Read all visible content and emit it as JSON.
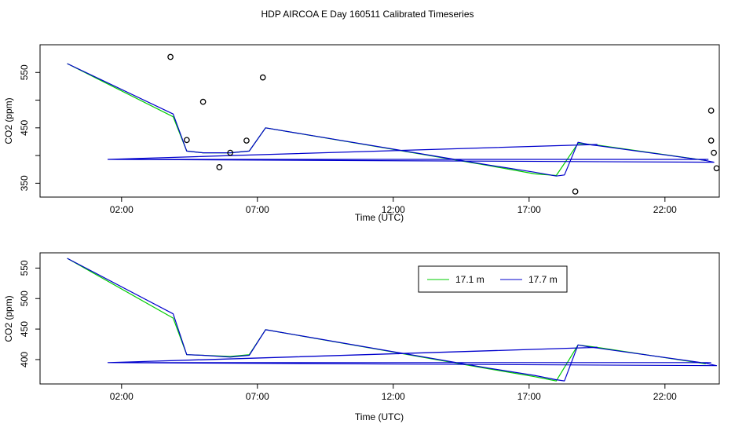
{
  "figure": {
    "title": "HDP AIRCOA E  Day 160511  Calibrated Timeseries"
  },
  "chart_data": [
    {
      "type": "line",
      "xlabel": "Time (UTC)",
      "ylabel": "CO2 (ppm)",
      "xlim": [
        -1,
        24
      ],
      "ylim": [
        325,
        600
      ],
      "xticks": [
        2,
        7,
        12,
        17,
        22
      ],
      "xtick_labels": [
        "02:00",
        "07:00",
        "12:00",
        "17:00",
        "22:00"
      ],
      "yticks": [
        350,
        400,
        450,
        500,
        550
      ],
      "ytick_labels": [
        "350",
        "",
        "450",
        "",
        "550"
      ],
      "grid": false,
      "legend": null,
      "series": [
        {
          "color": "#00cc00",
          "x": [
            0.0,
            3.9,
            4.4,
            5.0,
            6.0,
            6.7,
            7.3,
            15.5,
            17.2,
            18.0,
            18.8,
            19.5,
            23.5
          ],
          "y": [
            566,
            470,
            408,
            405,
            405,
            408,
            450,
            382,
            367,
            364,
            422,
            419,
            391
          ]
        },
        {
          "color": "#0000cc",
          "x": [
            0.0,
            3.9,
            4.4,
            5.0,
            6.0,
            6.7,
            7.3,
            15.5,
            17.2,
            18.0,
            18.3,
            18.8,
            19.3,
            19.5,
            23.5,
            23.8,
            1.5,
            6.0,
            19.5,
            1.5,
            23.6
          ],
          "y": [
            566,
            475,
            408,
            405,
            405,
            408,
            450,
            383,
            370,
            363,
            365,
            424,
            419,
            418,
            391,
            388,
            393,
            400,
            420,
            393,
            393
          ]
        }
      ],
      "markers": {
        "x": [
          3.8,
          4.4,
          5.0,
          5.6,
          6.0,
          6.6,
          7.2,
          18.7,
          23.7,
          23.7,
          23.8,
          23.9
        ],
        "y": [
          578,
          428,
          497,
          379,
          405,
          427,
          541,
          335,
          481,
          427,
          405,
          377
        ]
      }
    },
    {
      "type": "line",
      "xlabel": "Time (UTC)",
      "ylabel": "CO2 (ppm)",
      "xlim": [
        -1,
        24
      ],
      "ylim": [
        360,
        575
      ],
      "xticks": [
        2,
        7,
        12,
        17,
        22
      ],
      "xtick_labels": [
        "02:00",
        "07:00",
        "12:00",
        "17:00",
        "22:00"
      ],
      "yticks": [
        400,
        450,
        500,
        550
      ],
      "ytick_labels": [
        "400",
        "450",
        "500",
        "550"
      ],
      "grid": false,
      "legend": {
        "placement": "top-right",
        "entries": [
          {
            "label": "17.1 m",
            "color": "#00cc00"
          },
          {
            "label": "17.7 m",
            "color": "#0000cc"
          }
        ]
      },
      "series": [
        {
          "color": "#00cc00",
          "x": [
            0.0,
            3.9,
            4.4,
            5.0,
            6.0,
            6.7,
            7.3,
            15.5,
            17.2,
            18.0,
            18.8,
            19.5,
            23.5
          ],
          "y": [
            566,
            468,
            408,
            407,
            405,
            408,
            449,
            385,
            372,
            365,
            424,
            420,
            393
          ]
        },
        {
          "color": "#0000cc",
          "x": [
            0.0,
            3.9,
            4.4,
            5.0,
            6.0,
            6.7,
            7.3,
            15.5,
            17.2,
            18.0,
            18.3,
            18.8,
            19.3,
            19.5,
            23.5,
            23.9,
            1.5,
            6.0,
            19.5,
            1.5,
            23.7
          ],
          "y": [
            566,
            475,
            408,
            407,
            404,
            407,
            449,
            386,
            374,
            367,
            365,
            424,
            420,
            419,
            394,
            390,
            395,
            401,
            420,
            395,
            395
          ]
        }
      ]
    }
  ]
}
